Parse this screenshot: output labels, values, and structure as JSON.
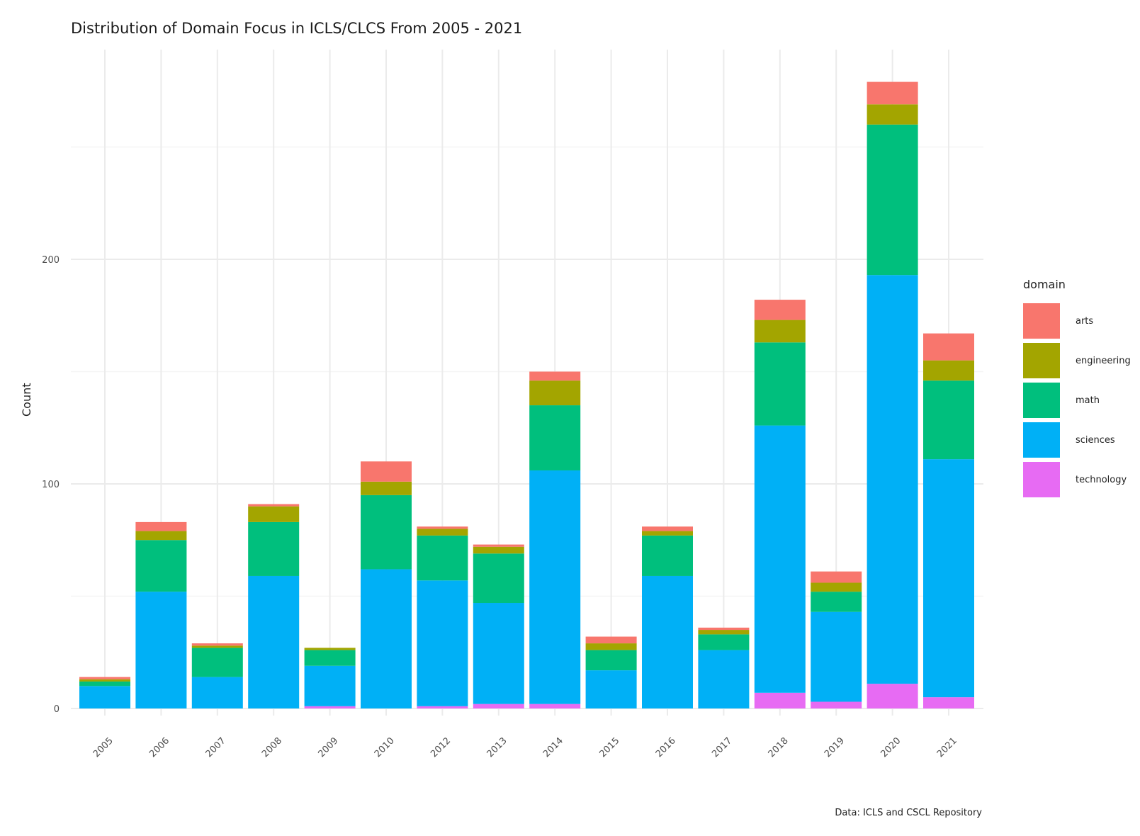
{
  "chart_data": {
    "type": "bar",
    "stacked": true,
    "title": "Distribution of Domain Focus in ICLS/CLCS From 2005 - 2021",
    "xlabel": "",
    "ylabel": "Count",
    "caption": "Data: ICLS and CSCL Repository",
    "ylim": [
      0,
      290
    ],
    "yticks": [
      0,
      100,
      200
    ],
    "grid": true,
    "legend": {
      "title": "domain",
      "position": "right"
    },
    "categories": [
      "2005",
      "2006",
      "2007",
      "2008",
      "2009",
      "2010",
      "2012",
      "2013",
      "2014",
      "2015",
      "2016",
      "2017",
      "2018",
      "2019",
      "2020",
      "2021"
    ],
    "series": [
      {
        "name": "technology",
        "color": "#E76BF3",
        "values": [
          0,
          0,
          0,
          0,
          1,
          0,
          1,
          2,
          2,
          0,
          0,
          0,
          7,
          3,
          11,
          5
        ]
      },
      {
        "name": "sciences",
        "color": "#00B0F6",
        "values": [
          10,
          52,
          14,
          59,
          18,
          62,
          56,
          45,
          104,
          17,
          59,
          26,
          119,
          40,
          182,
          106
        ]
      },
      {
        "name": "math",
        "color": "#00BF7D",
        "values": [
          2,
          23,
          13,
          24,
          7,
          33,
          20,
          22,
          29,
          9,
          18,
          7,
          37,
          9,
          67,
          35
        ]
      },
      {
        "name": "engineering",
        "color": "#A3A500",
        "values": [
          1,
          4,
          1,
          7,
          1,
          6,
          3,
          3,
          11,
          3,
          2,
          2,
          10,
          4,
          9,
          9
        ]
      },
      {
        "name": "arts",
        "color": "#F8766D",
        "values": [
          1,
          4,
          1,
          1,
          0,
          9,
          1,
          1,
          4,
          3,
          2,
          1,
          9,
          5,
          10,
          12
        ]
      }
    ]
  }
}
